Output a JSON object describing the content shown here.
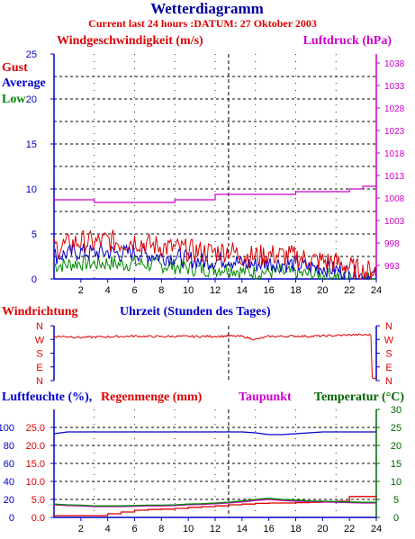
{
  "header": {
    "title": "Wetterdiagramm",
    "subtitle": "Current last 24 hours :DATUM: 27 Oktober 2003"
  },
  "colors": {
    "gust": "#dd0000",
    "average": "#0000cc",
    "low": "#008800",
    "pressure": "#cc00cc",
    "title": "#000099",
    "humidity_label": "#0000cc",
    "rain": "#dd0000",
    "temperature": "#006600"
  },
  "labels": {
    "wind_speed": "Windgeschwindigkeit (m/s)",
    "pressure": "Luftdruck (hPa)",
    "gust": "Gust",
    "average": "Average",
    "low": "Low",
    "wind_direction": "Windrichtung",
    "hours": "Uhrzeit (Stunden des Tages)",
    "humidity": "Luftfeuchte (%),",
    "rain": "Regenmenge (mm)",
    "dewpoint": "Taupunkt",
    "temperature": "Temperatur (°C)"
  },
  "chart_data": [
    {
      "id": "wind_pressure",
      "type": "line",
      "x": [
        0,
        1,
        2,
        3,
        4,
        5,
        6,
        7,
        8,
        9,
        10,
        11,
        12,
        13,
        14,
        15,
        16,
        17,
        18,
        19,
        20,
        21,
        22,
        23,
        24
      ],
      "xticks": [
        "2",
        "4",
        "6",
        "8",
        "10",
        "12",
        "14",
        "16",
        "18",
        "20",
        "22",
        "24"
      ],
      "xlim": [
        0,
        24
      ],
      "ylim": [
        0,
        25
      ],
      "yticks": [
        "0",
        "5",
        "10",
        "15",
        "20",
        "25"
      ],
      "ylim_right": [
        990,
        1040
      ],
      "yticks_right": [
        "993",
        "998",
        "1003",
        "1008",
        "1013",
        "1018",
        "1023",
        "1028",
        "1033",
        "1038"
      ],
      "series": [
        {
          "name": "Gust",
          "axis": "left",
          "values": [
            3.5,
            3.8,
            4.2,
            4.0,
            4.3,
            4.0,
            4.3,
            3.8,
            3.6,
            3.4,
            3.2,
            3.0,
            3.0,
            3.2,
            2.6,
            2.5,
            2.7,
            2.6,
            2.5,
            2.1,
            2.0,
            1.8,
            1.3,
            0.8,
            1.0
          ]
        },
        {
          "name": "Average",
          "axis": "left",
          "values": [
            2.5,
            2.8,
            3.0,
            2.9,
            3.0,
            2.8,
            3.0,
            2.7,
            2.5,
            2.4,
            2.2,
            2.0,
            2.0,
            2.2,
            1.7,
            1.6,
            1.8,
            1.7,
            1.6,
            1.3,
            1.3,
            1.0,
            0.7,
            0.3,
            0.4
          ]
        },
        {
          "name": "Low",
          "axis": "left",
          "values": [
            1.5,
            1.6,
            1.8,
            1.7,
            1.8,
            1.6,
            1.8,
            1.6,
            1.5,
            1.4,
            1.2,
            1.1,
            1.1,
            1.2,
            0.8,
            0.7,
            0.8,
            0.7,
            0.6,
            0.5,
            0.4,
            0.3,
            0.1,
            0.0,
            0.0
          ]
        },
        {
          "name": "Luftdruck",
          "axis": "right",
          "values": [
            1007.6,
            1007.6,
            1007.6,
            1007.0,
            1007.0,
            1007.0,
            1007.0,
            1007.0,
            1007.0,
            1007.6,
            1007.6,
            1007.6,
            1008.8,
            1008.8,
            1008.8,
            1008.8,
            1008.8,
            1008.8,
            1009.4,
            1009.4,
            1009.4,
            1009.4,
            1010.0,
            1010.6,
            1010.6
          ]
        }
      ],
      "grid": true
    },
    {
      "id": "wind_direction",
      "type": "line",
      "yticks": [
        "N",
        "W",
        "S",
        "E",
        "N"
      ],
      "xlim": [
        0,
        24
      ],
      "series": [
        {
          "name": "Windrichtung",
          "values": [
            290,
            290,
            283,
            286,
            288,
            290,
            292,
            290,
            289,
            291,
            289,
            290,
            291,
            292,
            290,
            270,
            290,
            291,
            292,
            291,
            293,
            296,
            300,
            300,
            20
          ]
        }
      ]
    },
    {
      "id": "humidity_temp",
      "type": "line",
      "xticks": [
        "2",
        "4",
        "6",
        "8",
        "10",
        "12",
        "14",
        "16",
        "18",
        "20",
        "22",
        "24"
      ],
      "xlim": [
        0,
        24
      ],
      "yticks_left_outer": [
        "0",
        "20",
        "40",
        "60",
        "80",
        "100"
      ],
      "yticks_left_inner": [
        "0.0",
        "5.0",
        "10.0",
        "15.0",
        "20.0",
        "25.0"
      ],
      "yticks_right": [
        "0",
        "5",
        "10",
        "15",
        "20",
        "25",
        "30"
      ],
      "series": [
        {
          "name": "Luftfeuchte",
          "unit": "%",
          "values": [
            93,
            95,
            95,
            95,
            95,
            95,
            95,
            95,
            95,
            95,
            95,
            95,
            95,
            95,
            95,
            94,
            92,
            92,
            93,
            94,
            95,
            95,
            95,
            95,
            95
          ]
        },
        {
          "name": "Regenmenge",
          "unit": "mm",
          "values": [
            0.5,
            0.5,
            0.5,
            0.5,
            1.0,
            1.5,
            2.0,
            2.2,
            2.3,
            2.5,
            2.8,
            3.0,
            3.2,
            3.5,
            3.7,
            3.9,
            4.0,
            4.0,
            4.1,
            4.2,
            4.3,
            4.5,
            5.8,
            5.8,
            5.9
          ]
        },
        {
          "name": "Taupunkt",
          "unit": "°C",
          "values": [
            3.5,
            3.3,
            3.2,
            3.0,
            3.0,
            3.0,
            3.1,
            3.2,
            3.2,
            3.3,
            3.5,
            3.6,
            3.8,
            4.0,
            4.3,
            4.7,
            5.0,
            4.7,
            4.5,
            4.4,
            4.3,
            4.2,
            4.1,
            4.0,
            4.0
          ]
        },
        {
          "name": "Temperatur",
          "unit": "°C",
          "values": [
            3.7,
            3.5,
            3.4,
            3.2,
            3.2,
            3.2,
            3.3,
            3.4,
            3.4,
            3.5,
            3.7,
            3.8,
            4.0,
            4.2,
            4.6,
            5.0,
            5.3,
            5.0,
            4.8,
            4.6,
            4.5,
            4.4,
            4.3,
            4.2,
            4.2
          ]
        }
      ]
    }
  ]
}
